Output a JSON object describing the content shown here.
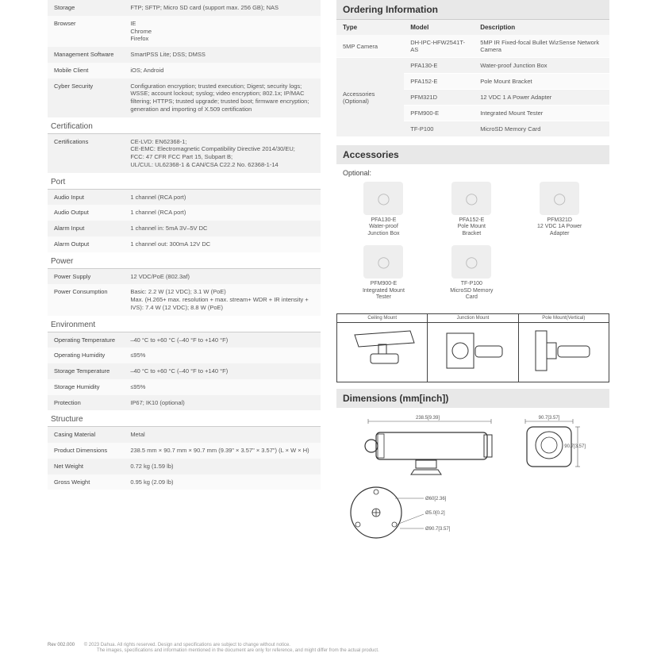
{
  "left": {
    "groups": [
      {
        "rows": [
          {
            "k": "Storage",
            "v": "FTP; SFTP; Micro SD card (support max. 256 GB); NAS"
          },
          {
            "k": "Browser",
            "v": "IE\nChrome\nFirefox"
          },
          {
            "k": "Management Software",
            "v": "SmartPSS Lite; DSS; DMSS"
          },
          {
            "k": "Mobile Client",
            "v": "iOS; Android"
          },
          {
            "k": "Cyber Security",
            "v": "Configuration encryption; trusted execution; Digest; security logs; WSSE; account lockout; syslog; video encryption; 802.1x; IP/MAC filtering; HTTPS; trusted upgrade; trusted boot; firmware encryption; generation and importing of X.509 certification"
          }
        ]
      },
      {
        "title": "Certification",
        "rows": [
          {
            "k": "Certifications",
            "v": "CE-LVD: EN62368-1;\nCE-EMC: Electromagnetic Compatibility Directive 2014/30/EU;\nFCC: 47 CFR FCC Part 15, Subpart B;\nUL/CUL: UL62368-1 & CAN/CSA C22.2 No. 62368-1-14"
          }
        ]
      },
      {
        "title": "Port",
        "rows": [
          {
            "k": "Audio Input",
            "v": "1 channel (RCA port)"
          },
          {
            "k": "Audio Output",
            "v": "1 channel (RCA port)"
          },
          {
            "k": "Alarm Input",
            "v": "1 channel in: 5mA 3V–5V DC"
          },
          {
            "k": "Alarm Output",
            "v": "1 channel out: 300mA 12V DC"
          }
        ]
      },
      {
        "title": "Power",
        "rows": [
          {
            "k": "Power Supply",
            "v": "12 VDC/PoE (802.3af)"
          },
          {
            "k": "Power Consumption",
            "v": "Basic: 2.2 W (12 VDC); 3.1 W (PoE)\nMax. (H.265+ max. resolution + max. stream+ WDR + IR intensity + IVS): 7.4 W (12 VDC); 8.8 W (PoE)"
          }
        ]
      },
      {
        "title": "Environment",
        "rows": [
          {
            "k": "Operating Temperature",
            "v": "–40 °C to +60 °C (–40 °F to +140 °F)"
          },
          {
            "k": "Operating Humidity",
            "v": "≤95%"
          },
          {
            "k": "Storage Temperature",
            "v": "–40 °C to +60 °C (–40 °F to +140 °F)"
          },
          {
            "k": "Storage Humidity",
            "v": "≤95%"
          },
          {
            "k": "Protection",
            "v": "IP67; IK10 (optional)"
          }
        ]
      },
      {
        "title": "Structure",
        "rows": [
          {
            "k": "Casing Material",
            "v": "Metal"
          },
          {
            "k": "Product Dimensions",
            "v": "238.5 mm × 90.7 mm × 90.7 mm (9.39\" × 3.57\" × 3.57\") (L × W × H)"
          },
          {
            "k": "Net Weight",
            "v": "0.72 kg (1.59 lb)"
          },
          {
            "k": "Gross Weight",
            "v": "0.95 kg (2.09 lb)"
          }
        ]
      }
    ]
  },
  "ordering": {
    "title": "Ordering Information",
    "headers": [
      "Type",
      "Model",
      "Description"
    ],
    "rows": [
      {
        "type": "5MP Camera",
        "model": "DH-IPC-HFW2541T-AS",
        "desc": "5MP IR Fixed-focal Bullet WizSense Network Camera",
        "alt": 0
      },
      {
        "type": "Accessories (Optional)",
        "model": "PFA130-E",
        "desc": "Water-proof Junction Box",
        "alt": 1,
        "span": 5
      },
      {
        "model": "PFA152-E",
        "desc": "Pole Mount Bracket",
        "alt": 0
      },
      {
        "model": "PFM321D",
        "desc": "12 VDC 1 A Power Adapter",
        "alt": 1
      },
      {
        "model": "PFM900-E",
        "desc": "Integrated Mount Tester",
        "alt": 0
      },
      {
        "model": "TF-P100",
        "desc": "MicroSD Memory Card",
        "alt": 1
      }
    ]
  },
  "accessories": {
    "title": "Accessories",
    "subtitle": "Optional:",
    "items": [
      {
        "name": "PFA130-E",
        "desc": "Water-proof\nJunction Box"
      },
      {
        "name": "PFA152-E",
        "desc": "Pole Mount\nBracket"
      },
      {
        "name": "PFM321D",
        "desc": "12 VDC 1A Power\nAdapter"
      },
      {
        "name": "PFM900-E",
        "desc": "Integrated Mount\nTester"
      },
      {
        "name": "TF-P100",
        "desc": "MicroSD Memory\nCard"
      }
    ]
  },
  "mounts": [
    "Ceiling Mount",
    "Junction Mount",
    "Pole Mount(Vertical)"
  ],
  "dimensions_title": "Dimensions (mm[inch])",
  "dim_labels": {
    "len": "238.5[9.39]",
    "w": "90.7[3.57]",
    "d1": "Ø60[2.36]",
    "d2": "Ø5.0[0.2]",
    "d3": "Ø90.7[3.57]"
  },
  "footer": {
    "rev": "Rev 002.000",
    "line1": "© 2023 Dahua. All rights reserved. Design and specifications are subject to change without notice.",
    "line2": "The images, specifications and information mentioned in the document are only for reference, and might differ from the actual product."
  }
}
